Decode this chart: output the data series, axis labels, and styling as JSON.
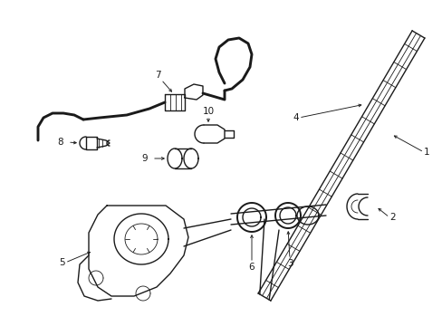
{
  "background_color": "#ffffff",
  "line_color": "#1a1a1a",
  "figsize": [
    4.89,
    3.6
  ],
  "dpi": 100,
  "lw_main": 1.0,
  "lw_thin": 0.6,
  "lw_thick": 1.4,
  "fontsize": 7.5
}
